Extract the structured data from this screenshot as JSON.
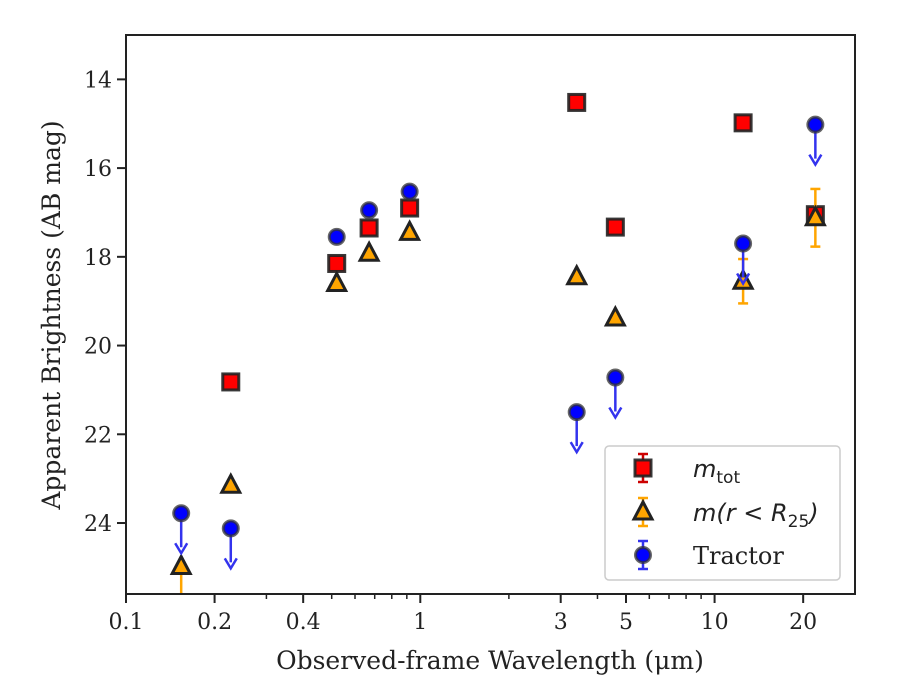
{
  "chart_data": {
    "type": "scatter",
    "xlabel": "Observed-frame Wavelength (μm)",
    "ylabel": "Apparent Brightness (AB mag)",
    "xscale": "log",
    "xlim": [
      0.1,
      30
    ],
    "ylim": [
      25.6,
      13.0
    ],
    "y_inverted": true,
    "x_ticks": [
      0.1,
      0.2,
      0.4,
      1,
      3,
      5,
      10,
      20
    ],
    "x_tick_labels": [
      "0.1",
      "0.2",
      "0.4",
      "1",
      "3",
      "5",
      "10",
      "20"
    ],
    "y_ticks": [
      14,
      16,
      18,
      20,
      22,
      24
    ],
    "y_tick_labels": [
      "14",
      "16",
      "18",
      "20",
      "22",
      "24"
    ],
    "legend_position": "lower-right",
    "series": [
      {
        "name": "m_tot",
        "legend_main": "m",
        "legend_sub": "tot",
        "marker": "square",
        "color": "#ff0000",
        "errcolor": "#cc0000",
        "points": [
          {
            "x": 0.227,
            "y": 20.82,
            "err": 0
          },
          {
            "x": 0.52,
            "y": 18.15,
            "err": 0
          },
          {
            "x": 0.67,
            "y": 17.35,
            "err": 0
          },
          {
            "x": 0.92,
            "y": 16.9,
            "err": 0
          },
          {
            "x": 3.4,
            "y": 14.52,
            "err": 0
          },
          {
            "x": 4.6,
            "y": 17.33,
            "err": 0
          },
          {
            "x": 12.5,
            "y": 14.98,
            "err": 0
          },
          {
            "x": 22.0,
            "y": 17.05,
            "err": 0
          }
        ]
      },
      {
        "name": "m(r < R25)",
        "legend_main": "m(r < R",
        "legend_sub": "25",
        "legend_tail": ")",
        "marker": "triangle",
        "color": "#ffa500",
        "errcolor": "#ffa500",
        "points": [
          {
            "x": 0.154,
            "y": 24.98,
            "err": 0,
            "upper_limit": true
          },
          {
            "x": 0.227,
            "y": 23.15,
            "err": 0
          },
          {
            "x": 0.52,
            "y": 18.6,
            "err": 0
          },
          {
            "x": 0.67,
            "y": 17.92,
            "err": 0
          },
          {
            "x": 0.92,
            "y": 17.45,
            "err": 0
          },
          {
            "x": 3.4,
            "y": 18.45,
            "err": 0
          },
          {
            "x": 4.6,
            "y": 19.38,
            "err": 0
          },
          {
            "x": 12.5,
            "y": 18.55,
            "err": 0.5
          },
          {
            "x": 22.0,
            "y": 17.12,
            "err": 0.65
          }
        ]
      },
      {
        "name": "Tractor",
        "legend_main": "Tractor",
        "marker": "circle",
        "color": "#0000ff",
        "errcolor": "#3333ee",
        "points": [
          {
            "x": 0.154,
            "y": 23.78,
            "err": 0,
            "upper_limit": true
          },
          {
            "x": 0.227,
            "y": 24.12,
            "err": 0,
            "upper_limit": true
          },
          {
            "x": 0.52,
            "y": 17.55,
            "err": 0
          },
          {
            "x": 0.67,
            "y": 16.95,
            "err": 0
          },
          {
            "x": 0.92,
            "y": 16.53,
            "err": 0
          },
          {
            "x": 3.4,
            "y": 21.5,
            "err": 0,
            "upper_limit": true
          },
          {
            "x": 4.6,
            "y": 20.72,
            "err": 0,
            "upper_limit": true
          },
          {
            "x": 12.5,
            "y": 17.7,
            "err": 0,
            "upper_limit": true
          },
          {
            "x": 22.0,
            "y": 15.02,
            "err": 0,
            "upper_limit": true
          }
        ]
      }
    ]
  }
}
